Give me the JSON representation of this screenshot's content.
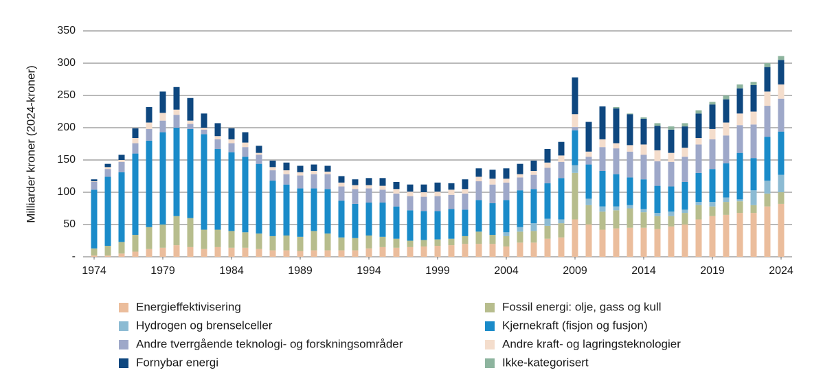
{
  "chart_data": {
    "type": "stacked-bar",
    "y_label": "Milliarder kroner (2024-kroner)",
    "x": [
      1974,
      1975,
      1976,
      1977,
      1978,
      1979,
      1980,
      1981,
      1982,
      1983,
      1984,
      1985,
      1986,
      1987,
      1988,
      1989,
      1990,
      1991,
      1992,
      1993,
      1994,
      1995,
      1996,
      1997,
      1998,
      1999,
      2000,
      2001,
      2002,
      2003,
      2004,
      2005,
      2006,
      2007,
      2008,
      2009,
      2010,
      2011,
      2012,
      2013,
      2014,
      2015,
      2016,
      2017,
      2018,
      2019,
      2020,
      2021,
      2022,
      2023,
      2024
    ],
    "xlim": [
      1973.2,
      2024.8
    ],
    "xticks": [
      1974,
      1979,
      1984,
      1989,
      1994,
      1999,
      2004,
      2009,
      2014,
      2019,
      2024
    ],
    "ylim": [
      0,
      350
    ],
    "yticks": [
      {
        "value": 0,
        "label": "-"
      },
      50,
      100,
      150,
      200,
      250,
      300,
      350
    ],
    "grid": true,
    "series": [
      {
        "name": "Energieffektivisering",
        "color": "#ebbd9c",
        "values": [
          2,
          2,
          5,
          8,
          12,
          14,
          18,
          15,
          12,
          15,
          14,
          14,
          12,
          10,
          10,
          9,
          10,
          10,
          10,
          10,
          13,
          15,
          14,
          15,
          16,
          17,
          18,
          20,
          20,
          20,
          16,
          22,
          22,
          28,
          30,
          58,
          50,
          42,
          44,
          45,
          45,
          43,
          47,
          50,
          58,
          63,
          65,
          68,
          68,
          78,
          82
        ]
      },
      {
        "name": "Fossil energi: olje, gass og kull",
        "color": "#b7bd8d",
        "values": [
          11,
          15,
          18,
          26,
          34,
          36,
          45,
          45,
          30,
          27,
          26,
          24,
          24,
          22,
          23,
          22,
          30,
          26,
          20,
          19,
          20,
          16,
          14,
          10,
          10,
          10,
          10,
          12,
          19,
          14,
          16,
          17,
          18,
          20,
          22,
          72,
          30,
          28,
          28,
          30,
          24,
          20,
          16,
          18,
          22,
          15,
          20,
          18,
          12,
          20,
          18
        ]
      },
      {
        "name": "Hydrogen og brenselceller",
        "color": "#8cbbd3",
        "values": [
          0,
          0,
          0,
          0,
          0,
          0,
          0,
          0,
          0,
          0,
          0,
          0,
          0,
          0,
          0,
          0,
          0,
          0,
          0,
          0,
          0,
          0,
          0,
          0,
          0,
          0,
          0,
          0,
          0,
          0,
          6,
          7,
          12,
          11,
          6,
          12,
          10,
          8,
          6,
          5,
          5,
          5,
          7,
          5,
          5,
          7,
          7,
          3,
          23,
          20,
          27
        ]
      },
      {
        "name": "Kjernekraft (fisjon og fusjon)",
        "color": "#1a8bc9",
        "values": [
          91,
          107,
          108,
          126,
          134,
          143,
          137,
          138,
          148,
          125,
          122,
          117,
          108,
          86,
          79,
          75,
          66,
          69,
          57,
          53,
          51,
          53,
          50,
          47,
          45,
          44,
          46,
          41,
          49,
          49,
          50,
          57,
          53,
          55,
          64,
          54,
          53,
          55,
          50,
          43,
          46,
          42,
          39,
          43,
          45,
          51,
          53,
          72,
          50,
          68,
          67
        ]
      },
      {
        "name": "Andre tverrgående teknologi- og forskningsområder",
        "color": "#9ea8c9",
        "values": [
          12,
          12,
          16,
          16,
          18,
          18,
          20,
          8,
          7,
          15,
          14,
          15,
          14,
          16,
          16,
          20,
          22,
          23,
          22,
          23,
          22,
          20,
          20,
          22,
          22,
          23,
          22,
          25,
          29,
          29,
          27,
          20,
          22,
          24,
          25,
          5,
          12,
          37,
          40,
          40,
          38,
          38,
          38,
          39,
          44,
          46,
          43,
          43,
          52,
          48,
          51
        ]
      },
      {
        "name": "Andre kraft- og lagringsteknologier",
        "color": "#f4ddcc",
        "values": [
          1,
          3,
          3,
          8,
          10,
          12,
          8,
          5,
          3,
          5,
          6,
          7,
          3,
          5,
          6,
          5,
          5,
          4,
          6,
          6,
          5,
          6,
          7,
          7,
          7,
          7,
          8,
          7,
          7,
          9,
          6,
          5,
          6,
          8,
          10,
          20,
          8,
          12,
          8,
          10,
          16,
          17,
          14,
          14,
          10,
          16,
          20,
          18,
          20,
          22,
          22
        ]
      },
      {
        "name": "Fornybar energi",
        "color": "#0e477f",
        "values": [
          3,
          5,
          8,
          15,
          24,
          33,
          35,
          35,
          22,
          20,
          17,
          16,
          11,
          10,
          12,
          10,
          10,
          9,
          10,
          9,
          11,
          12,
          11,
          11,
          12,
          14,
          10,
          15,
          13,
          14,
          16,
          16,
          16,
          21,
          21,
          57,
          46,
          51,
          54,
          48,
          40,
          38,
          36,
          33,
          38,
          38,
          36,
          39,
          41,
          38,
          38
        ]
      },
      {
        "name": "Ikke-kategorisert",
        "color": "#8db49e",
        "values": [
          0,
          0,
          0,
          0,
          0,
          0,
          0,
          0,
          0,
          0,
          0,
          0,
          0,
          0,
          0,
          0,
          0,
          0,
          0,
          0,
          0,
          0,
          0,
          0,
          0,
          0,
          0,
          0,
          0,
          0,
          0,
          0,
          0,
          0,
          0,
          0,
          0,
          0,
          2,
          1,
          2,
          4,
          5,
          5,
          5,
          4,
          6,
          6,
          5,
          6,
          6
        ]
      }
    ]
  }
}
